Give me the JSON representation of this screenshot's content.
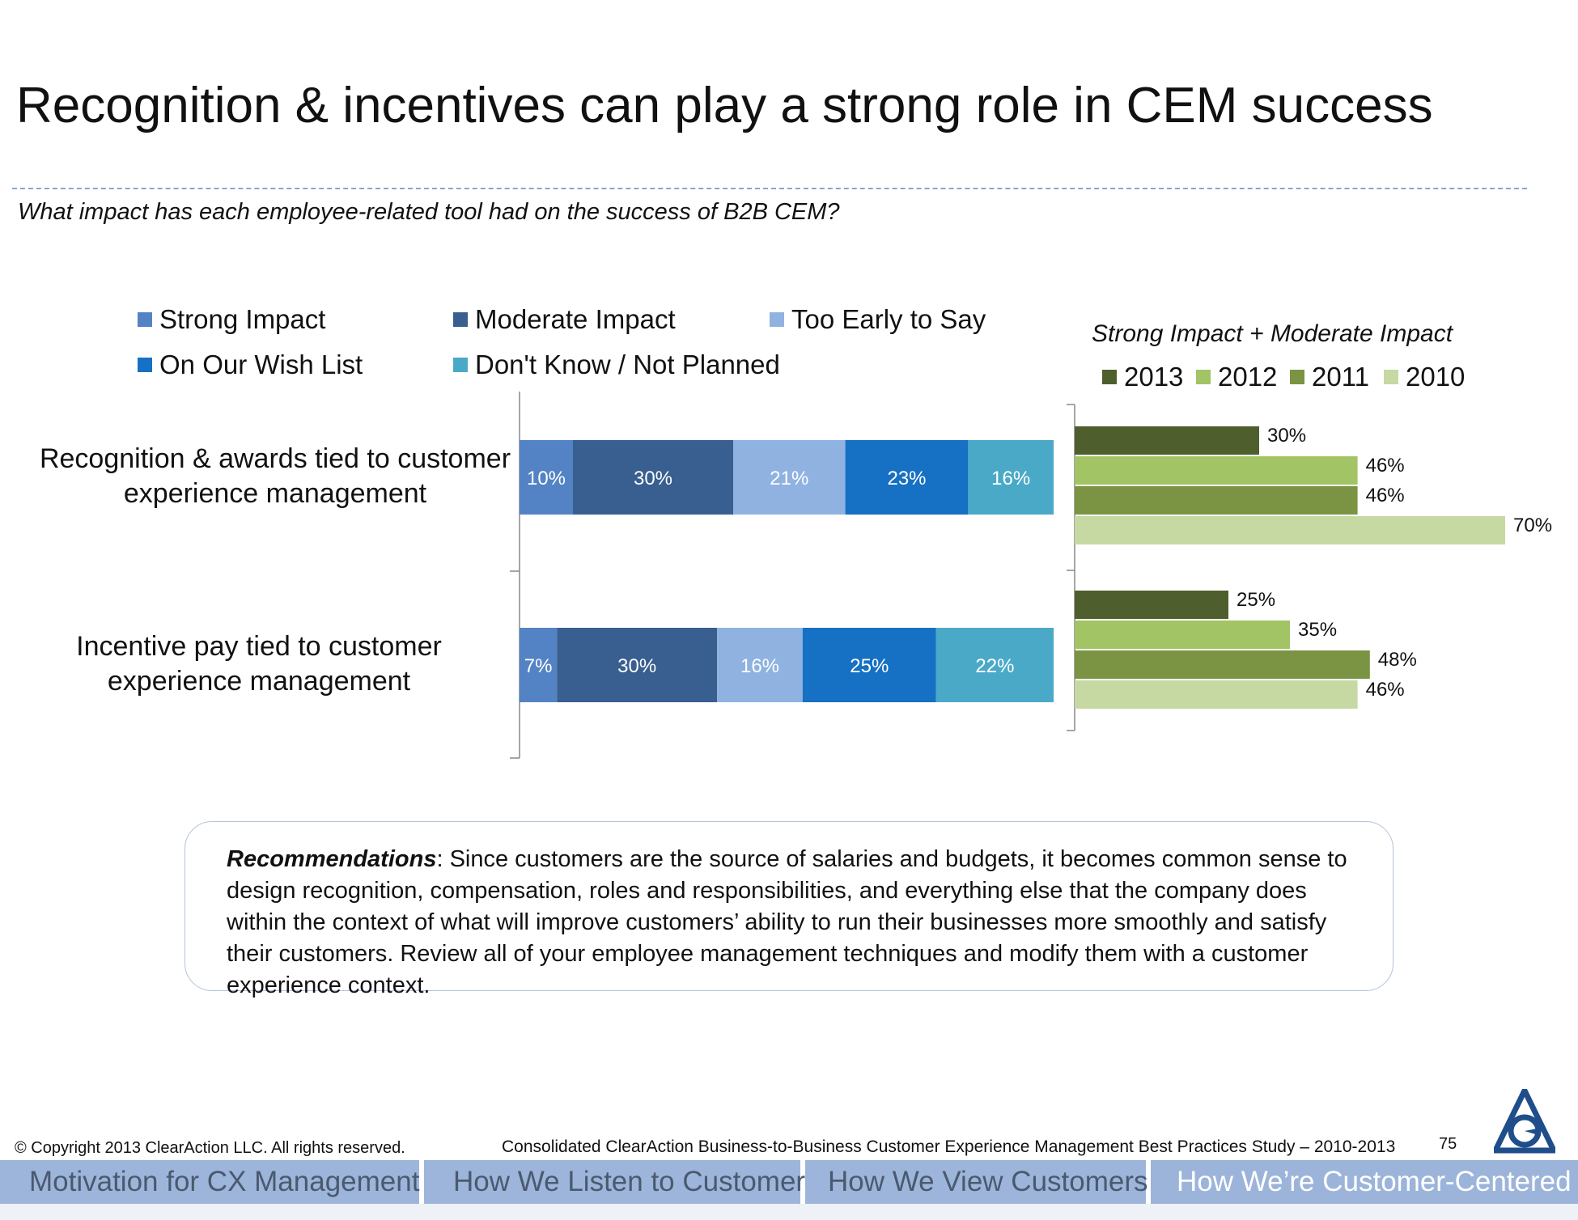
{
  "title": "Recognition & incentives can play a strong role in CEM success",
  "question": "What impact has each employee-related tool had on the success of B2B CEM?",
  "chart_data": [
    {
      "type": "bar",
      "orientation": "horizontal",
      "stacked": true,
      "categories": [
        "Recognition & awards tied to customer experience management",
        "Incentive pay tied to customer experience management"
      ],
      "series": [
        {
          "name": "Strong Impact",
          "color": "#5383c5",
          "values": [
            10,
            7
          ]
        },
        {
          "name": "Moderate Impact",
          "color": "#385f8f",
          "values": [
            30,
            30
          ]
        },
        {
          "name": "Too Early to Say",
          "color": "#8fb2e1",
          "values": [
            21,
            16
          ]
        },
        {
          "name": "On Our Wish List",
          "color": "#1670c3",
          "values": [
            23,
            25
          ]
        },
        {
          "name": "Don't Know / Not Planned",
          "color": "#4ba9c8",
          "values": [
            16,
            22
          ]
        }
      ],
      "value_labels": [
        [
          "10%",
          "30%",
          "21%",
          "23%",
          "16%"
        ],
        [
          "7%",
          "30%",
          "16%",
          "25%",
          "22%"
        ]
      ],
      "legend_position": "top"
    },
    {
      "type": "bar",
      "orientation": "horizontal",
      "stacked": false,
      "title": "Strong Impact + Moderate Impact",
      "categories": [
        "Recognition & awards tied to customer experience management",
        "Incentive pay tied to customer experience management"
      ],
      "series": [
        {
          "name": "2013",
          "color": "#4e5f2d",
          "values": [
            30,
            25
          ]
        },
        {
          "name": "2012",
          "color": "#a2c465",
          "values": [
            46,
            35
          ]
        },
        {
          "name": "2011",
          "color": "#7a9444",
          "values": [
            46,
            48
          ]
        },
        {
          "name": "2010",
          "color": "#c6d9a3",
          "values": [
            70,
            46
          ]
        }
      ],
      "value_labels": [
        [
          "30%",
          "46%",
          "46%",
          "70%"
        ],
        [
          "25%",
          "35%",
          "48%",
          "46%"
        ]
      ],
      "legend_position": "top"
    }
  ],
  "recommendations": {
    "label": "Recommendations",
    "text": ":  Since customers are the source of salaries and budgets, it becomes common sense to design recognition, compensation, roles and responsibilities, and everything else that the company does within the context of what will improve customers’ ability to run their businesses more smoothly and satisfy their customers.  Review all of your employee management techniques and modify them with a customer experience context."
  },
  "footer": {
    "copyright": "© Copyright 2013 ClearAction LLC. All rights reserved.",
    "study": "Consolidated ClearAction Business-to-Business Customer Experience Management Best Practices Study – 2010-2013",
    "page_number": "75"
  },
  "nav_tabs": [
    "Motivation for CX Management",
    "How We Listen to Customers",
    "How We View Customers",
    "How We’re Customer-Centered"
  ],
  "logo": {
    "icon": "clearaction-logo-icon",
    "color": "#1f4e8a"
  }
}
